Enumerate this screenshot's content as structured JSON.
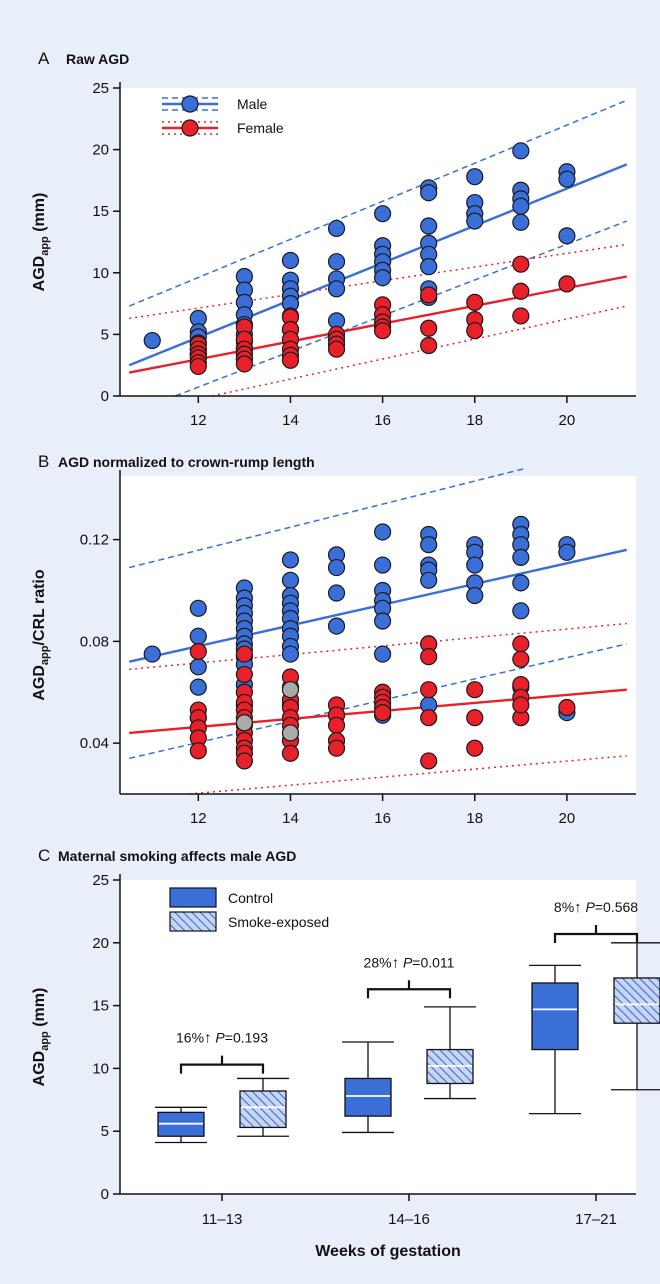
{
  "colors": {
    "background": "#e9eff8",
    "plot_area": "#ffffff",
    "male": "#3a6fd8",
    "female": "#e8202a",
    "gray_point": "#aaaaaa"
  },
  "chart_data": [
    {
      "panel": "A",
      "panel_letter": "A",
      "title": "Raw AGD",
      "type": "scatter",
      "ylabel": "AGD",
      "ylabel_sub": "app",
      "ylabel_suffix": " (mm)",
      "xlabel": "",
      "xlim": [
        10.3,
        21.5
      ],
      "ylim": [
        0,
        25
      ],
      "xticks": [
        12,
        14,
        16,
        18,
        20
      ],
      "yticks": [
        0,
        5,
        10,
        15,
        20,
        25
      ],
      "legend": {
        "position": "top-left",
        "entries": [
          {
            "name": "Male",
            "color": "#3a6fd8",
            "style": "dashed"
          },
          {
            "name": "Female",
            "color": "#e8202a",
            "style": "dotted"
          }
        ]
      },
      "series": [
        {
          "name": "Male",
          "color": "#3a6fd8",
          "x": [
            11,
            12,
            12,
            12,
            12,
            12,
            12,
            13,
            13,
            13,
            13,
            13,
            13,
            13,
            13,
            13,
            13,
            14,
            14,
            14,
            14,
            14,
            14,
            14,
            15,
            15,
            15,
            15,
            15,
            16,
            16,
            16,
            16,
            16,
            16,
            17,
            17,
            17,
            17,
            17,
            17,
            17,
            17,
            18,
            18,
            18,
            18,
            19,
            19,
            19,
            19,
            19,
            20,
            20,
            20
          ],
          "y": [
            4.5,
            6.3,
            5.2,
            4.8,
            4.3,
            3.8,
            3.4,
            9.7,
            8.6,
            7.6,
            6.6,
            5.8,
            5.0,
            4.4,
            3.9,
            3.5,
            3.0,
            11.0,
            9.4,
            8.7,
            8.1,
            7.5,
            6.5,
            5.4,
            13.6,
            10.9,
            9.5,
            8.7,
            6.1,
            14.8,
            12.2,
            11.5,
            10.9,
            10.2,
            9.6,
            16.9,
            16.5,
            13.8,
            12.4,
            11.5,
            10.5,
            8.7,
            8.0,
            17.8,
            15.7,
            14.8,
            14.2,
            19.9,
            16.7,
            16.0,
            15.4,
            14.1,
            18.2,
            17.6,
            13.0
          ]
        },
        {
          "name": "Female",
          "color": "#e8202a",
          "x": [
            12,
            12,
            12,
            12,
            12,
            12,
            13,
            13,
            13,
            13,
            13,
            13,
            14,
            14,
            14,
            14,
            14,
            14,
            15,
            15,
            15,
            15,
            16,
            16,
            16,
            16,
            16,
            17,
            17,
            17,
            18,
            18,
            18,
            19,
            19,
            19,
            20
          ],
          "y": [
            4.2,
            3.8,
            3.4,
            3.1,
            2.7,
            2.4,
            5.6,
            4.6,
            3.8,
            3.4,
            3.0,
            2.6,
            6.4,
            5.4,
            4.6,
            3.8,
            3.3,
            2.9,
            5.0,
            4.6,
            4.2,
            3.8,
            7.4,
            6.6,
            6.0,
            5.6,
            5.3,
            8.2,
            5.5,
            4.1,
            7.6,
            6.2,
            5.3,
            10.7,
            8.5,
            6.5,
            9.1
          ]
        }
      ],
      "regression": [
        {
          "series": "Male",
          "color": "#3a6fd8",
          "fit": [
            [
              10.5,
              2.5
            ],
            [
              21.3,
              18.8
            ]
          ],
          "band_upper": [
            [
              10.5,
              7.3
            ],
            [
              21.3,
              24.0
            ]
          ],
          "band_lower": [
            [
              11.5,
              0.0
            ],
            [
              21.3,
              14.2
            ]
          ]
        },
        {
          "series": "Female",
          "color": "#e8202a",
          "fit": [
            [
              10.5,
              1.9
            ],
            [
              21.3,
              9.7
            ]
          ],
          "band_upper": [
            [
              10.5,
              6.3
            ],
            [
              21.3,
              12.3
            ]
          ],
          "band_lower": [
            [
              12.3,
              0.0
            ],
            [
              21.3,
              7.3
            ]
          ]
        }
      ]
    },
    {
      "panel": "B",
      "panel_letter": "B",
      "title": "AGD normalized to crown-rump length",
      "type": "scatter",
      "ylabel": "AGD",
      "ylabel_sub": "app",
      "ylabel_suffix": "/CRL ratio",
      "xlabel": "",
      "xlim": [
        10.3,
        21.5
      ],
      "ylim": [
        0.02,
        0.145
      ],
      "xticks": [
        12,
        14,
        16,
        18,
        20
      ],
      "yticks": [
        0.04,
        0.08,
        0.12
      ],
      "ytick_labels": [
        "0.04",
        "0.08",
        "0.12"
      ],
      "series": [
        {
          "name": "Male",
          "color": "#3a6fd8",
          "x": [
            11,
            12,
            12,
            12,
            12,
            12,
            13,
            13,
            13,
            13,
            13,
            13,
            13,
            13,
            13,
            13,
            13,
            13,
            13,
            14,
            14,
            14,
            14,
            14,
            14,
            14,
            14,
            14,
            14,
            14,
            14,
            15,
            15,
            15,
            15,
            16,
            16,
            16,
            16,
            16,
            16,
            16,
            16,
            17,
            17,
            17,
            17,
            17,
            17,
            17,
            18,
            18,
            18,
            18,
            18,
            19,
            19,
            19,
            19,
            19,
            19,
            19,
            20,
            20,
            20
          ],
          "y": [
            0.075,
            0.093,
            0.082,
            0.07,
            0.062,
            0.05,
            0.101,
            0.097,
            0.094,
            0.091,
            0.088,
            0.085,
            0.082,
            0.079,
            0.077,
            0.074,
            0.071,
            0.063,
            0.055,
            0.112,
            0.104,
            0.098,
            0.095,
            0.092,
            0.089,
            0.085,
            0.082,
            0.078,
            0.075,
            0.062,
            0.055,
            0.114,
            0.109,
            0.099,
            0.086,
            0.123,
            0.11,
            0.1,
            0.096,
            0.093,
            0.088,
            0.075,
            0.051,
            0.122,
            0.118,
            0.11,
            0.108,
            0.104,
            0.079,
            0.055,
            0.118,
            0.115,
            0.11,
            0.103,
            0.098,
            0.126,
            0.122,
            0.118,
            0.113,
            0.103,
            0.092,
            0.062,
            0.118,
            0.115,
            0.052
          ]
        },
        {
          "name": "Female",
          "color": "#e8202a",
          "x": [
            12,
            12,
            12,
            12,
            12,
            12,
            13,
            13,
            13,
            13,
            13,
            13,
            13,
            13,
            13,
            13,
            13,
            13,
            14,
            14,
            14,
            14,
            14,
            14,
            14,
            14,
            15,
            15,
            15,
            15,
            15,
            16,
            16,
            16,
            16,
            16,
            17,
            17,
            17,
            17,
            17,
            18,
            18,
            18,
            19,
            19,
            19,
            19,
            19,
            19,
            20
          ],
          "y": [
            0.076,
            0.053,
            0.05,
            0.046,
            0.042,
            0.037,
            0.075,
            0.067,
            0.06,
            0.056,
            0.053,
            0.05,
            0.047,
            0.044,
            0.041,
            0.038,
            0.036,
            0.033,
            0.066,
            0.057,
            0.054,
            0.05,
            0.047,
            0.044,
            0.041,
            0.036,
            0.055,
            0.051,
            0.047,
            0.041,
            0.038,
            0.06,
            0.058,
            0.056,
            0.054,
            0.052,
            0.079,
            0.074,
            0.061,
            0.05,
            0.033,
            0.061,
            0.05,
            0.038,
            0.079,
            0.073,
            0.063,
            0.058,
            0.05,
            0.055,
            0.054
          ]
        },
        {
          "name": "",
          "color": "#aaaaaa",
          "x": [
            13,
            14,
            14
          ],
          "y": [
            0.048,
            0.061,
            0.044
          ]
        }
      ],
      "regression": [
        {
          "series": "Male",
          "color": "#3a6fd8",
          "fit": [
            [
              10.5,
              0.072
            ],
            [
              21.3,
              0.116
            ]
          ],
          "band_upper": [
            [
              10.5,
              0.109
            ],
            [
              19.1,
              0.148
            ]
          ],
          "band_lower": [
            [
              10.5,
              0.034
            ],
            [
              21.3,
              0.079
            ]
          ]
        },
        {
          "series": "Female",
          "color": "#e8202a",
          "fit": [
            [
              10.5,
              0.044
            ],
            [
              21.3,
              0.061
            ]
          ],
          "band_upper": [
            [
              10.5,
              0.069
            ],
            [
              21.3,
              0.087
            ]
          ],
          "band_lower": [
            [
              11.8,
              0.02
            ],
            [
              21.3,
              0.035
            ]
          ]
        }
      ]
    },
    {
      "panel": "C",
      "panel_letter": "C",
      "title": "Maternal smoking affects male AGD",
      "type": "box",
      "ylabel": "AGD",
      "ylabel_sub": "app",
      "ylabel_suffix": " (mm)",
      "xlabel": "Weeks of gestation",
      "ylim": [
        0,
        25
      ],
      "yticks": [
        0,
        5,
        10,
        15,
        20,
        25
      ],
      "categories": [
        "11–13",
        "14–16",
        "17–21"
      ],
      "legend": {
        "position": "top-left",
        "entries": [
          {
            "name": "Control",
            "pattern": "solid"
          },
          {
            "name": "Smoke-exposed",
            "pattern": "hatched"
          }
        ]
      },
      "series": [
        {
          "name": "Control",
          "pattern": "solid",
          "boxes": [
            {
              "min": 4.1,
              "q1": 4.6,
              "median": 5.6,
              "q3": 6.5,
              "max": 6.9
            },
            {
              "min": 4.9,
              "q1": 6.2,
              "median": 7.8,
              "q3": 9.2,
              "max": 12.1
            },
            {
              "min": 6.4,
              "q1": 11.5,
              "median": 14.7,
              "q3": 16.8,
              "max": 18.2
            }
          ]
        },
        {
          "name": "Smoke-exposed",
          "pattern": "hatched",
          "boxes": [
            {
              "min": 4.6,
              "q1": 5.3,
              "median": 6.9,
              "q3": 8.2,
              "max": 9.2
            },
            {
              "min": 7.6,
              "q1": 8.8,
              "median": 10.2,
              "q3": 11.5,
              "max": 14.9
            },
            {
              "min": 8.3,
              "q1": 13.6,
              "median": 15.1,
              "q3": 17.2,
              "max": 20.0
            }
          ]
        }
      ],
      "annotations": [
        {
          "group": "11–13",
          "percent": "16%",
          "p_label": "P",
          "p_value": "=0.193",
          "bracket_y": 10.3
        },
        {
          "group": "14–16",
          "percent": "28%",
          "p_label": "P",
          "p_value": "=0.011",
          "bracket_y": 16.3
        },
        {
          "group": "17–21",
          "percent": "8%",
          "p_label": "P",
          "p_value": "=0.568",
          "bracket_y": 20.7
        }
      ]
    }
  ]
}
